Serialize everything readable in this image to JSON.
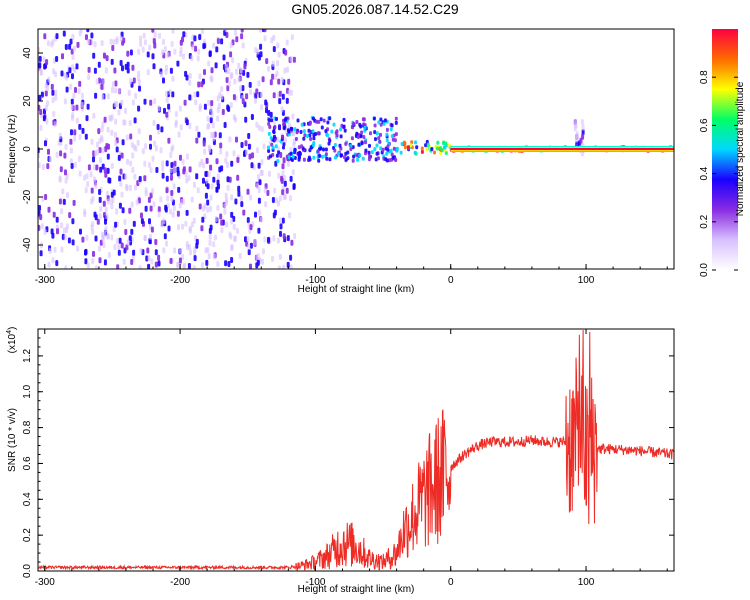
{
  "title": "GN05.2026.087.14.52.C29",
  "colors": {
    "snr_line": "#ee2b24",
    "spectrogram_palette": [
      "#ffffff",
      "#d8c0ff",
      "#8a2be2",
      "#1a00ff",
      "#00d7ff",
      "#00ff66",
      "#ffff00",
      "#ff6a00",
      "#ff0040"
    ]
  },
  "chart_data": [
    {
      "type": "heatmap",
      "xlabel": "Height of straight line (km)",
      "ylabel": "Frequency (Hz)",
      "xlim": [
        -305,
        165
      ],
      "ylim": [
        -50,
        50
      ],
      "xticks": [
        -300,
        -200,
        -100,
        0,
        100
      ],
      "yticks": [
        -40,
        -20,
        0,
        20,
        40
      ],
      "colorbar": {
        "label": "Normalized spectral amplitude",
        "range": [
          0,
          1
        ],
        "ticks": [
          "0.0",
          "0.2",
          "0.4",
          "0.6",
          "0.8"
        ]
      },
      "regions": [
        {
          "x": [
            -305,
            -115
          ],
          "freq": [
            -50,
            50
          ],
          "amplitude": 0.12
        },
        {
          "x": [
            -135,
            -40
          ],
          "freq": [
            -5,
            13
          ],
          "amplitude": 0.35
        },
        {
          "x": [
            -40,
            0
          ],
          "freq": [
            -2,
            3
          ],
          "amplitude": 0.7
        },
        {
          "x": [
            0,
            165
          ],
          "freq": [
            -1,
            1
          ],
          "amplitude": 1.0
        },
        {
          "x": [
            92,
            98
          ],
          "freq": [
            -2,
            12
          ],
          "amplitude": 0.15
        }
      ]
    },
    {
      "type": "line",
      "xlabel": "Height of straight line (km)",
      "ylabel": "SNR (10 * v/v)",
      "yscale_label": "(x10",
      "yscale_exp": "4",
      "yscale_close": ")",
      "xlim": [
        -305,
        165
      ],
      "ylim": [
        0,
        1.35
      ],
      "xticks": [
        -300,
        -200,
        -100,
        0,
        100
      ],
      "yticks": [
        "0.0",
        "0.2",
        "0.4",
        "0.6",
        "0.8",
        "1.0",
        "1.2"
      ],
      "series": [
        {
          "x": [
            -305,
            -250,
            -200,
            -150,
            -120,
            -110,
            -100,
            -90,
            -80,
            -70,
            -60,
            -50,
            -40,
            -35,
            -30,
            -25,
            -20,
            -15,
            -10,
            -5,
            0,
            10,
            20,
            30,
            40,
            50,
            60,
            70,
            80,
            85,
            90,
            95,
            98,
            100,
            102,
            104,
            106,
            110,
            120,
            140,
            165
          ],
          "values": [
            0.02,
            0.02,
            0.02,
            0.02,
            0.02,
            0.03,
            0.05,
            0.09,
            0.16,
            0.14,
            0.07,
            0.05,
            0.1,
            0.22,
            0.28,
            0.34,
            0.4,
            0.45,
            0.5,
            0.54,
            0.58,
            0.65,
            0.7,
            0.72,
            0.72,
            0.72,
            0.73,
            0.72,
            0.72,
            0.72,
            0.73,
            0.75,
            0.8,
            0.62,
            0.55,
            0.68,
            0.7,
            0.68,
            0.68,
            0.67,
            0.65
          ]
        }
      ]
    }
  ]
}
